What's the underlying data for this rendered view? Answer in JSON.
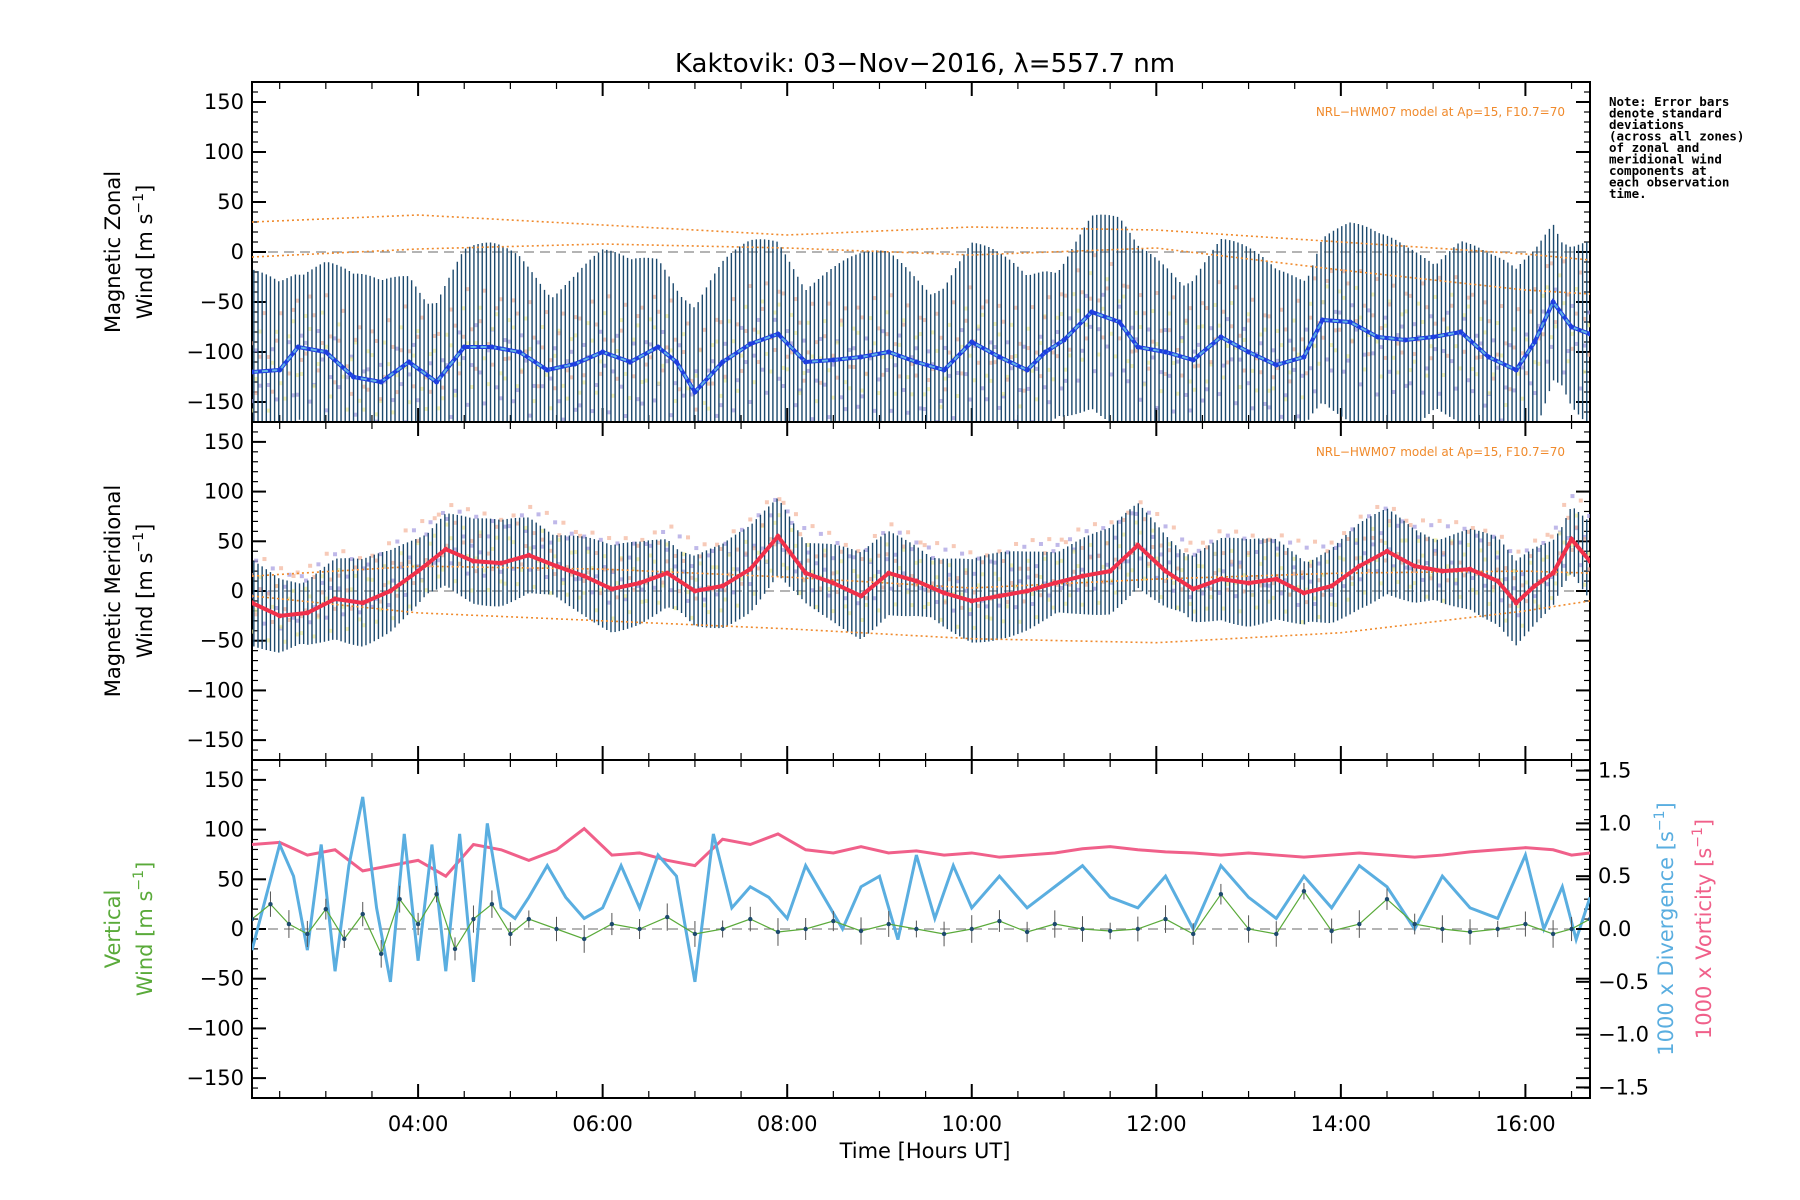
{
  "title": "Kaktovik: 03−Nov−2016, λ=557.7 nm",
  "note": "Note: Error bars denote standard deviations (across all zones) of zonal and meridional wind components at each observation time.",
  "model_label": "NRL−HWM07 model at Ap=15, F10.7=70",
  "colors": {
    "zonal_mean": "#1f3fe0",
    "zonal_mean_light": "#5fb0e6",
    "meridional_mean": "#f0304a",
    "model": "#f08a2c",
    "errorbar": "#1d4a6e",
    "vertical": "#5aaa3a",
    "divergence": "#5aaee0",
    "vorticity": "#f0608a",
    "scatter_purple": "#a49ae0",
    "scatter_yellow": "#f4ef9a",
    "scatter_salmon": "#f4b49a"
  },
  "chart_data": [
    {
      "type": "line",
      "panel": "zonal",
      "ylabel_line1": "Magnetic Zonal",
      "ylabel_line2": "Wind [m s",
      "ylabel_sup": "−1",
      "ylabel_end": "]",
      "xlim": [
        2.2,
        16.7
      ],
      "ylim": [
        -170,
        170
      ],
      "yticks": [
        -150,
        -100,
        -50,
        0,
        50,
        100,
        150
      ],
      "ytick_labels": [
        "−150",
        "−100",
        "−50",
        "0",
        "50",
        "100",
        "150"
      ],
      "series": [
        {
          "x": [
            2.2,
            2.5,
            2.7,
            3.0,
            3.3,
            3.6,
            3.9,
            4.2,
            4.5,
            4.8,
            5.1,
            5.4,
            5.7,
            6.0,
            6.3,
            6.6,
            6.8,
            7.0,
            7.3,
            7.6,
            7.9,
            8.2,
            8.5,
            8.8,
            9.1,
            9.4,
            9.7,
            10.0,
            10.3,
            10.6,
            10.8,
            11.0,
            11.3,
            11.6,
            11.8,
            12.1,
            12.4,
            12.7,
            13.0,
            13.3,
            13.6,
            13.8,
            14.1,
            14.4,
            14.7,
            15.0,
            15.3,
            15.6,
            15.9,
            16.1,
            16.3,
            16.5,
            16.7
          ],
          "y": [
            -120,
            -118,
            -95,
            -100,
            -125,
            -130,
            -110,
            -130,
            -95,
            -95,
            -100,
            -118,
            -112,
            -100,
            -110,
            -95,
            -110,
            -140,
            -110,
            -92,
            -82,
            -110,
            -108,
            -105,
            -100,
            -110,
            -118,
            -90,
            -105,
            -118,
            -100,
            -88,
            -60,
            -70,
            -95,
            -100,
            -108,
            -85,
            -100,
            -113,
            -105,
            -68,
            -70,
            -85,
            -88,
            -85,
            -80,
            -105,
            -118,
            -90,
            -50,
            -75,
            -82
          ]
        }
      ],
      "errorbar_sd": 95,
      "model": {
        "upper": [
          [
            2.2,
            30
          ],
          [
            4.0,
            37
          ],
          [
            6.0,
            27
          ],
          [
            8.0,
            17
          ],
          [
            10.0,
            25
          ],
          [
            12.0,
            22
          ],
          [
            14.0,
            10
          ],
          [
            16.0,
            -2
          ],
          [
            16.7,
            -8
          ]
        ],
        "middle": [
          [
            2.2,
            -5
          ],
          [
            4.0,
            3
          ],
          [
            6.0,
            8
          ],
          [
            8.0,
            4
          ],
          [
            10.0,
            -3
          ],
          [
            12.0,
            4
          ],
          [
            14.0,
            -18
          ],
          [
            16.0,
            -38
          ],
          [
            16.7,
            -42
          ]
        ]
      }
    },
    {
      "type": "line",
      "panel": "meridional",
      "ylabel_line1": "Magnetic Meridional",
      "ylabel_line2": "Wind [m s",
      "ylabel_sup": "−1",
      "ylabel_end": "]",
      "xlim": [
        2.2,
        16.7
      ],
      "ylim": [
        -170,
        170
      ],
      "yticks": [
        -150,
        -100,
        -50,
        0,
        50,
        100,
        150
      ],
      "ytick_labels": [
        "−150",
        "−100",
        "−50",
        "0",
        "50",
        "100",
        "150"
      ],
      "series": [
        {
          "x": [
            2.2,
            2.5,
            2.8,
            3.1,
            3.4,
            3.7,
            4.0,
            4.3,
            4.6,
            4.9,
            5.2,
            5.5,
            5.8,
            6.1,
            6.4,
            6.7,
            7.0,
            7.3,
            7.6,
            7.9,
            8.2,
            8.5,
            8.8,
            9.1,
            9.4,
            9.7,
            10.0,
            10.3,
            10.6,
            10.9,
            11.2,
            11.5,
            11.8,
            12.1,
            12.4,
            12.7,
            13.0,
            13.3,
            13.6,
            13.9,
            14.2,
            14.5,
            14.8,
            15.1,
            15.4,
            15.7,
            15.9,
            16.1,
            16.3,
            16.5,
            16.7
          ],
          "y": [
            -12,
            -25,
            -22,
            -8,
            -12,
            0,
            20,
            42,
            30,
            28,
            36,
            25,
            15,
            2,
            8,
            18,
            0,
            5,
            22,
            55,
            18,
            8,
            -5,
            18,
            10,
            -2,
            -10,
            -5,
            0,
            8,
            15,
            20,
            46,
            20,
            2,
            12,
            8,
            12,
            -2,
            5,
            25,
            40,
            25,
            20,
            22,
            10,
            -12,
            5,
            18,
            52,
            30
          ]
        }
      ],
      "errorbar_sd": 40,
      "model": {
        "upper": [
          [
            2.2,
            15
          ],
          [
            4.0,
            25
          ],
          [
            6.0,
            22
          ],
          [
            8.0,
            14
          ],
          [
            10.0,
            3
          ],
          [
            12.0,
            12
          ],
          [
            14.0,
            18
          ],
          [
            16.0,
            20
          ],
          [
            16.7,
            18
          ]
        ],
        "lower": [
          [
            2.2,
            -5
          ],
          [
            4.0,
            -22
          ],
          [
            6.0,
            -30
          ],
          [
            8.0,
            -38
          ],
          [
            10.0,
            -48
          ],
          [
            12.0,
            -52
          ],
          [
            14.0,
            -42
          ],
          [
            16.0,
            -20
          ],
          [
            16.7,
            -10
          ]
        ]
      }
    },
    {
      "type": "line",
      "panel": "vertical",
      "ylabel_line1": "Vertical",
      "ylabel_line2": "Wind [m s",
      "ylabel_sup": "−1",
      "ylabel_end": "]",
      "y2label_div": "1000 x Divergence [s",
      "y2label_vort": "1000 x Vorticity [s",
      "y2label_sup": "−1",
      "y2label_end": "]",
      "xlabel": "Time [Hours UT]",
      "xlim": [
        2.2,
        16.7
      ],
      "ylim": [
        -170,
        170
      ],
      "yticks": [
        -150,
        -100,
        -50,
        0,
        50,
        100,
        150
      ],
      "ytick_labels": [
        "−150",
        "−100",
        "−50",
        "0",
        "50",
        "100",
        "150"
      ],
      "y2lim": [
        -1.6,
        1.6
      ],
      "y2ticks": [
        -1.5,
        -1.0,
        -0.5,
        0.0,
        0.5,
        1.0,
        1.5
      ],
      "y2tick_labels": [
        "−1.5",
        "−1.0",
        "−0.5",
        "0.0",
        "0.5",
        "1.0",
        "1.5"
      ],
      "xticks": [
        4,
        6,
        8,
        10,
        12,
        14,
        16
      ],
      "xtick_labels": [
        "04:00",
        "06:00",
        "08:00",
        "10:00",
        "12:00",
        "14:00",
        "16:00"
      ],
      "series": [
        {
          "name": "Vertical Wind",
          "x": [
            2.2,
            2.4,
            2.6,
            2.8,
            3.0,
            3.2,
            3.4,
            3.6,
            3.8,
            4.0,
            4.2,
            4.4,
            4.6,
            4.8,
            5.0,
            5.2,
            5.5,
            5.8,
            6.1,
            6.4,
            6.7,
            7.0,
            7.3,
            7.6,
            7.9,
            8.2,
            8.5,
            8.8,
            9.1,
            9.4,
            9.7,
            10.0,
            10.3,
            10.6,
            10.9,
            11.2,
            11.5,
            11.8,
            12.1,
            12.4,
            12.7,
            13.0,
            13.3,
            13.6,
            13.9,
            14.2,
            14.5,
            14.8,
            15.1,
            15.4,
            15.7,
            16.0,
            16.3,
            16.5,
            16.7
          ],
          "y": [
            10,
            25,
            5,
            -5,
            20,
            -10,
            15,
            -25,
            30,
            5,
            35,
            -20,
            10,
            25,
            -5,
            10,
            0,
            -10,
            5,
            0,
            12,
            -5,
            0,
            10,
            -3,
            0,
            8,
            -2,
            5,
            0,
            -5,
            0,
            8,
            -3,
            5,
            0,
            -2,
            0,
            10,
            -5,
            35,
            0,
            -5,
            38,
            -2,
            5,
            30,
            5,
            0,
            -3,
            0,
            5,
            -5,
            0,
            10
          ]
        },
        {
          "name": "Divergence",
          "x": [
            2.2,
            2.35,
            2.5,
            2.65,
            2.8,
            2.95,
            3.1,
            3.25,
            3.4,
            3.55,
            3.7,
            3.85,
            4.0,
            4.15,
            4.3,
            4.45,
            4.6,
            4.75,
            4.9,
            5.05,
            5.2,
            5.4,
            5.6,
            5.8,
            6.0,
            6.2,
            6.4,
            6.6,
            6.8,
            7.0,
            7.2,
            7.4,
            7.6,
            7.8,
            8.0,
            8.2,
            8.4,
            8.6,
            8.8,
            9.0,
            9.2,
            9.4,
            9.6,
            9.8,
            10.0,
            10.3,
            10.6,
            10.9,
            11.2,
            11.5,
            11.8,
            12.1,
            12.4,
            12.7,
            13.0,
            13.3,
            13.6,
            13.9,
            14.2,
            14.5,
            14.8,
            15.1,
            15.4,
            15.7,
            16.0,
            16.2,
            16.4,
            16.55,
            16.7
          ],
          "y": [
            -0.2,
            0.3,
            0.8,
            0.5,
            -0.2,
            0.8,
            -0.4,
            0.6,
            1.25,
            0.2,
            -0.5,
            0.9,
            -0.3,
            0.8,
            -0.4,
            0.9,
            -0.5,
            1.0,
            0.2,
            0.1,
            0.3,
            0.6,
            0.3,
            0.1,
            0.2,
            0.6,
            0.2,
            0.7,
            0.5,
            -0.5,
            0.9,
            0.2,
            0.4,
            0.3,
            0.1,
            0.6,
            0.3,
            0.0,
            0.4,
            0.5,
            -0.1,
            0.7,
            0.1,
            0.6,
            0.2,
            0.5,
            0.2,
            0.4,
            0.6,
            0.3,
            0.2,
            0.5,
            0.0,
            0.6,
            0.3,
            0.1,
            0.5,
            0.2,
            0.6,
            0.4,
            0.0,
            0.5,
            0.2,
            0.1,
            0.7,
            0.0,
            0.4,
            -0.1,
            0.3
          ]
        },
        {
          "name": "Vorticity",
          "x": [
            2.2,
            2.5,
            2.8,
            3.1,
            3.4,
            3.7,
            4.0,
            4.3,
            4.6,
            4.9,
            5.2,
            5.5,
            5.8,
            6.1,
            6.4,
            6.7,
            7.0,
            7.3,
            7.6,
            7.9,
            8.2,
            8.5,
            8.8,
            9.1,
            9.4,
            9.7,
            10.0,
            10.3,
            10.6,
            10.9,
            11.2,
            11.5,
            11.8,
            12.1,
            12.4,
            12.7,
            13.0,
            13.3,
            13.6,
            13.9,
            14.2,
            14.5,
            14.8,
            15.1,
            15.4,
            15.7,
            16.0,
            16.3,
            16.5,
            16.7
          ],
          "y": [
            0.8,
            0.82,
            0.7,
            0.75,
            0.55,
            0.6,
            0.65,
            0.5,
            0.8,
            0.75,
            0.65,
            0.75,
            0.95,
            0.7,
            0.72,
            0.65,
            0.6,
            0.85,
            0.8,
            0.9,
            0.75,
            0.72,
            0.78,
            0.72,
            0.74,
            0.7,
            0.72,
            0.68,
            0.7,
            0.72,
            0.76,
            0.78,
            0.75,
            0.73,
            0.72,
            0.7,
            0.72,
            0.7,
            0.68,
            0.7,
            0.72,
            0.7,
            0.68,
            0.7,
            0.73,
            0.75,
            0.77,
            0.75,
            0.7,
            0.72
          ]
        }
      ]
    }
  ]
}
